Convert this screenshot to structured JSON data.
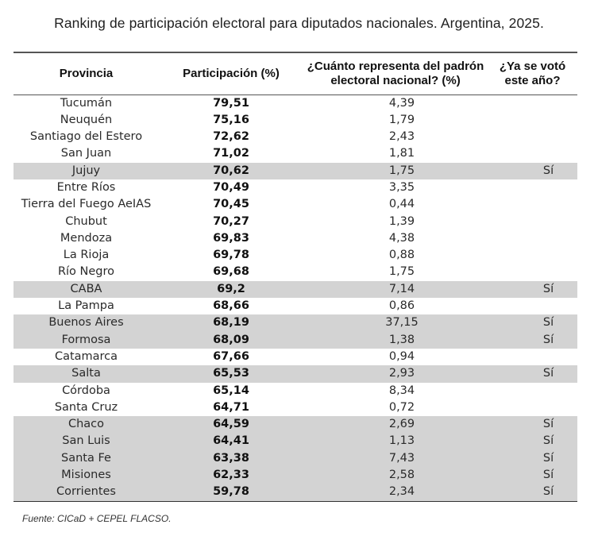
{
  "title": "Ranking de participación electoral para diputados nacionales. Argentina, 2025.",
  "table": {
    "headers": [
      "Provincia",
      "Participación (%)",
      "¿Cuánto representa del padrón electoral nacional? (%)",
      "¿Ya se votó este año?"
    ],
    "header_lines": {
      "col3_line1": "¿Cuánto representa del padrón",
      "col3_line2": "electoral nacional? (%)",
      "col4_line1": "¿Ya se votó",
      "col4_line2": "este año?"
    },
    "rows": [
      {
        "provincia": "Tucumán",
        "participacion": "79,51",
        "padron": "4,39",
        "ya_voto": ""
      },
      {
        "provincia": "Neuquén",
        "participacion": "75,16",
        "padron": "1,79",
        "ya_voto": ""
      },
      {
        "provincia": "Santiago del Estero",
        "participacion": "72,62",
        "padron": "2,43",
        "ya_voto": ""
      },
      {
        "provincia": "San Juan",
        "participacion": "71,02",
        "padron": "1,81",
        "ya_voto": ""
      },
      {
        "provincia": "Jujuy",
        "participacion": "70,62",
        "padron": "1,75",
        "ya_voto": "Sí"
      },
      {
        "provincia": "Entre Ríos",
        "participacion": "70,49",
        "padron": "3,35",
        "ya_voto": ""
      },
      {
        "provincia": "Tierra del Fuego AeIAS",
        "participacion": "70,45",
        "padron": "0,44",
        "ya_voto": ""
      },
      {
        "provincia": "Chubut",
        "participacion": "70,27",
        "padron": "1,39",
        "ya_voto": ""
      },
      {
        "provincia": "Mendoza",
        "participacion": "69,83",
        "padron": "4,38",
        "ya_voto": ""
      },
      {
        "provincia": "La Rioja",
        "participacion": "69,78",
        "padron": "0,88",
        "ya_voto": ""
      },
      {
        "provincia": "Río Negro",
        "participacion": "69,68",
        "padron": "1,75",
        "ya_voto": ""
      },
      {
        "provincia": "CABA",
        "participacion": "69,2",
        "padron": "7,14",
        "ya_voto": "Sí"
      },
      {
        "provincia": "La Pampa",
        "participacion": "68,66",
        "padron": "0,86",
        "ya_voto": ""
      },
      {
        "provincia": "Buenos Aires",
        "participacion": "68,19",
        "padron": "37,15",
        "ya_voto": "Sí"
      },
      {
        "provincia": "Formosa",
        "participacion": "68,09",
        "padron": "1,38",
        "ya_voto": "Sí"
      },
      {
        "provincia": "Catamarca",
        "participacion": "67,66",
        "padron": "0,94",
        "ya_voto": ""
      },
      {
        "provincia": "Salta",
        "participacion": "65,53",
        "padron": "2,93",
        "ya_voto": "Sí"
      },
      {
        "provincia": "Córdoba",
        "participacion": "65,14",
        "padron": "8,34",
        "ya_voto": ""
      },
      {
        "provincia": "Santa Cruz",
        "participacion": "64,71",
        "padron": "0,72",
        "ya_voto": ""
      },
      {
        "provincia": "Chaco",
        "participacion": "64,59",
        "padron": "2,69",
        "ya_voto": "Sí"
      },
      {
        "provincia": "San Luis",
        "participacion": "64,41",
        "padron": "1,13",
        "ya_voto": "Sí"
      },
      {
        "provincia": "Santa Fe",
        "participacion": "63,38",
        "padron": "7,43",
        "ya_voto": "Sí"
      },
      {
        "provincia": "Misiones",
        "participacion": "62,33",
        "padron": "2,58",
        "ya_voto": "Sí"
      },
      {
        "provincia": "Corrientes",
        "participacion": "59,78",
        "padron": "2,34",
        "ya_voto": "Sí"
      }
    ]
  },
  "colors": {
    "shaded_row": "#d3d3d3",
    "rule": "#555555"
  },
  "source": "Fuente: CICaD + CEPEL FLACSO."
}
